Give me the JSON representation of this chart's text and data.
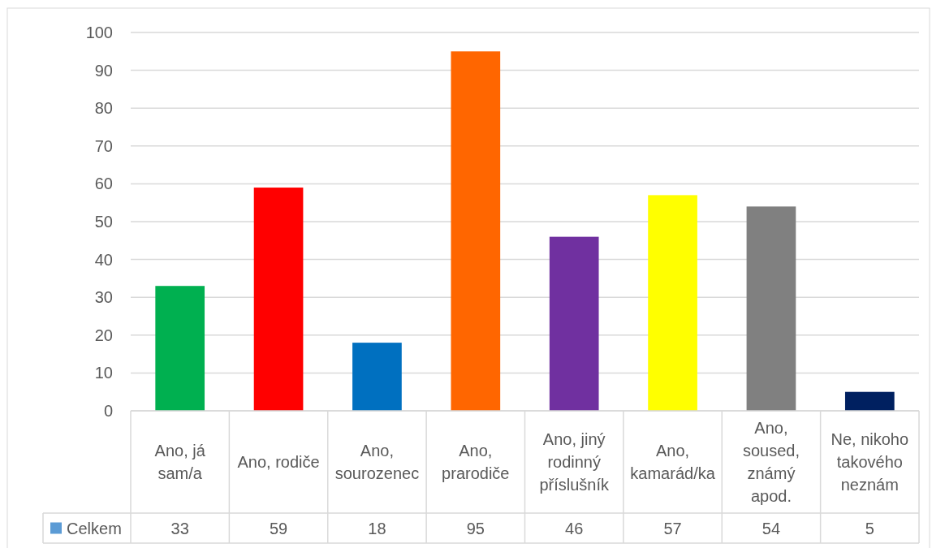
{
  "chart_data": {
    "type": "bar",
    "categories": [
      "Ano, já sam/a",
      "Ano, rodiče",
      "Ano, sourozenec",
      "Ano, prarodiče",
      "Ano, jiný rodinný příslušník",
      "Ano, kamarád/ka",
      "Ano, soused, známý apod.",
      "Ne, nikoho takového neznám"
    ],
    "series": [
      {
        "name": "Celkem",
        "color": "#5b9bd5",
        "colors": [
          "#00b050",
          "#ff0000",
          "#0070c0",
          "#ff6600",
          "#7030a0",
          "#ffff00",
          "#808080",
          "#002060"
        ],
        "values": [
          33,
          59,
          18,
          95,
          46,
          57,
          54,
          5
        ]
      }
    ],
    "ylim": [
      0,
      100
    ],
    "yticks": [
      0,
      10,
      20,
      30,
      40,
      50,
      60,
      70,
      80,
      90,
      100
    ],
    "grid": "y",
    "legend": "bottom left",
    "data_labels": true
  }
}
